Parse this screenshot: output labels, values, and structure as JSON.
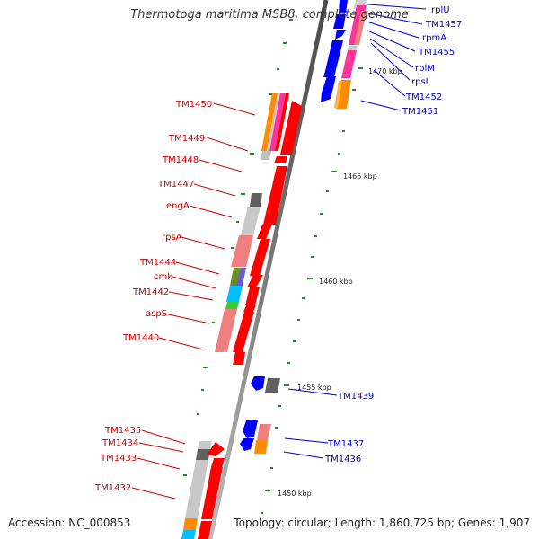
{
  "title": "Thermotoga maritima MSB8, complete genome",
  "footer": {
    "accession": "Accession: NC_000853",
    "topology": "Topology: circular; Length: 1,860,725 bp; Genes: 1,907"
  },
  "colors": {
    "backbone": "#808080",
    "red": "#ff0000",
    "blue": "#0000ff",
    "pink": "#ff3399",
    "orange": "#ff8c00",
    "salmon": "#f08080",
    "lightgray": "#c8c8c8",
    "darkgray": "#606060",
    "olive": "#6b8e23",
    "slate": "#6a5acd",
    "cyan": "#00bfff",
    "green": "#33cc33",
    "label_red": "#cc0000",
    "label_blue": "#0000cc",
    "tick_green": "#228b22"
  },
  "scale_labels": [
    "1470 kbp",
    "1465 kbp",
    "1460 kbp",
    "1455 kbp",
    "1450 kbp"
  ],
  "left_labels": [
    "TM1450",
    "TM1449",
    "TM1448",
    "TM1447",
    "engA",
    "rpsA",
    "TM1444",
    "cmk",
    "TM1442",
    "aspS",
    "TM1440",
    "TM1435",
    "TM1434",
    "TM1433",
    "TM1432"
  ],
  "right_labels": [
    "rplU",
    "TM1457",
    "rpmA",
    "TM1455",
    "rplM",
    "rpsI",
    "TM1452",
    "TM1451",
    "TM1439",
    "TM1437",
    "TM1436"
  ]
}
